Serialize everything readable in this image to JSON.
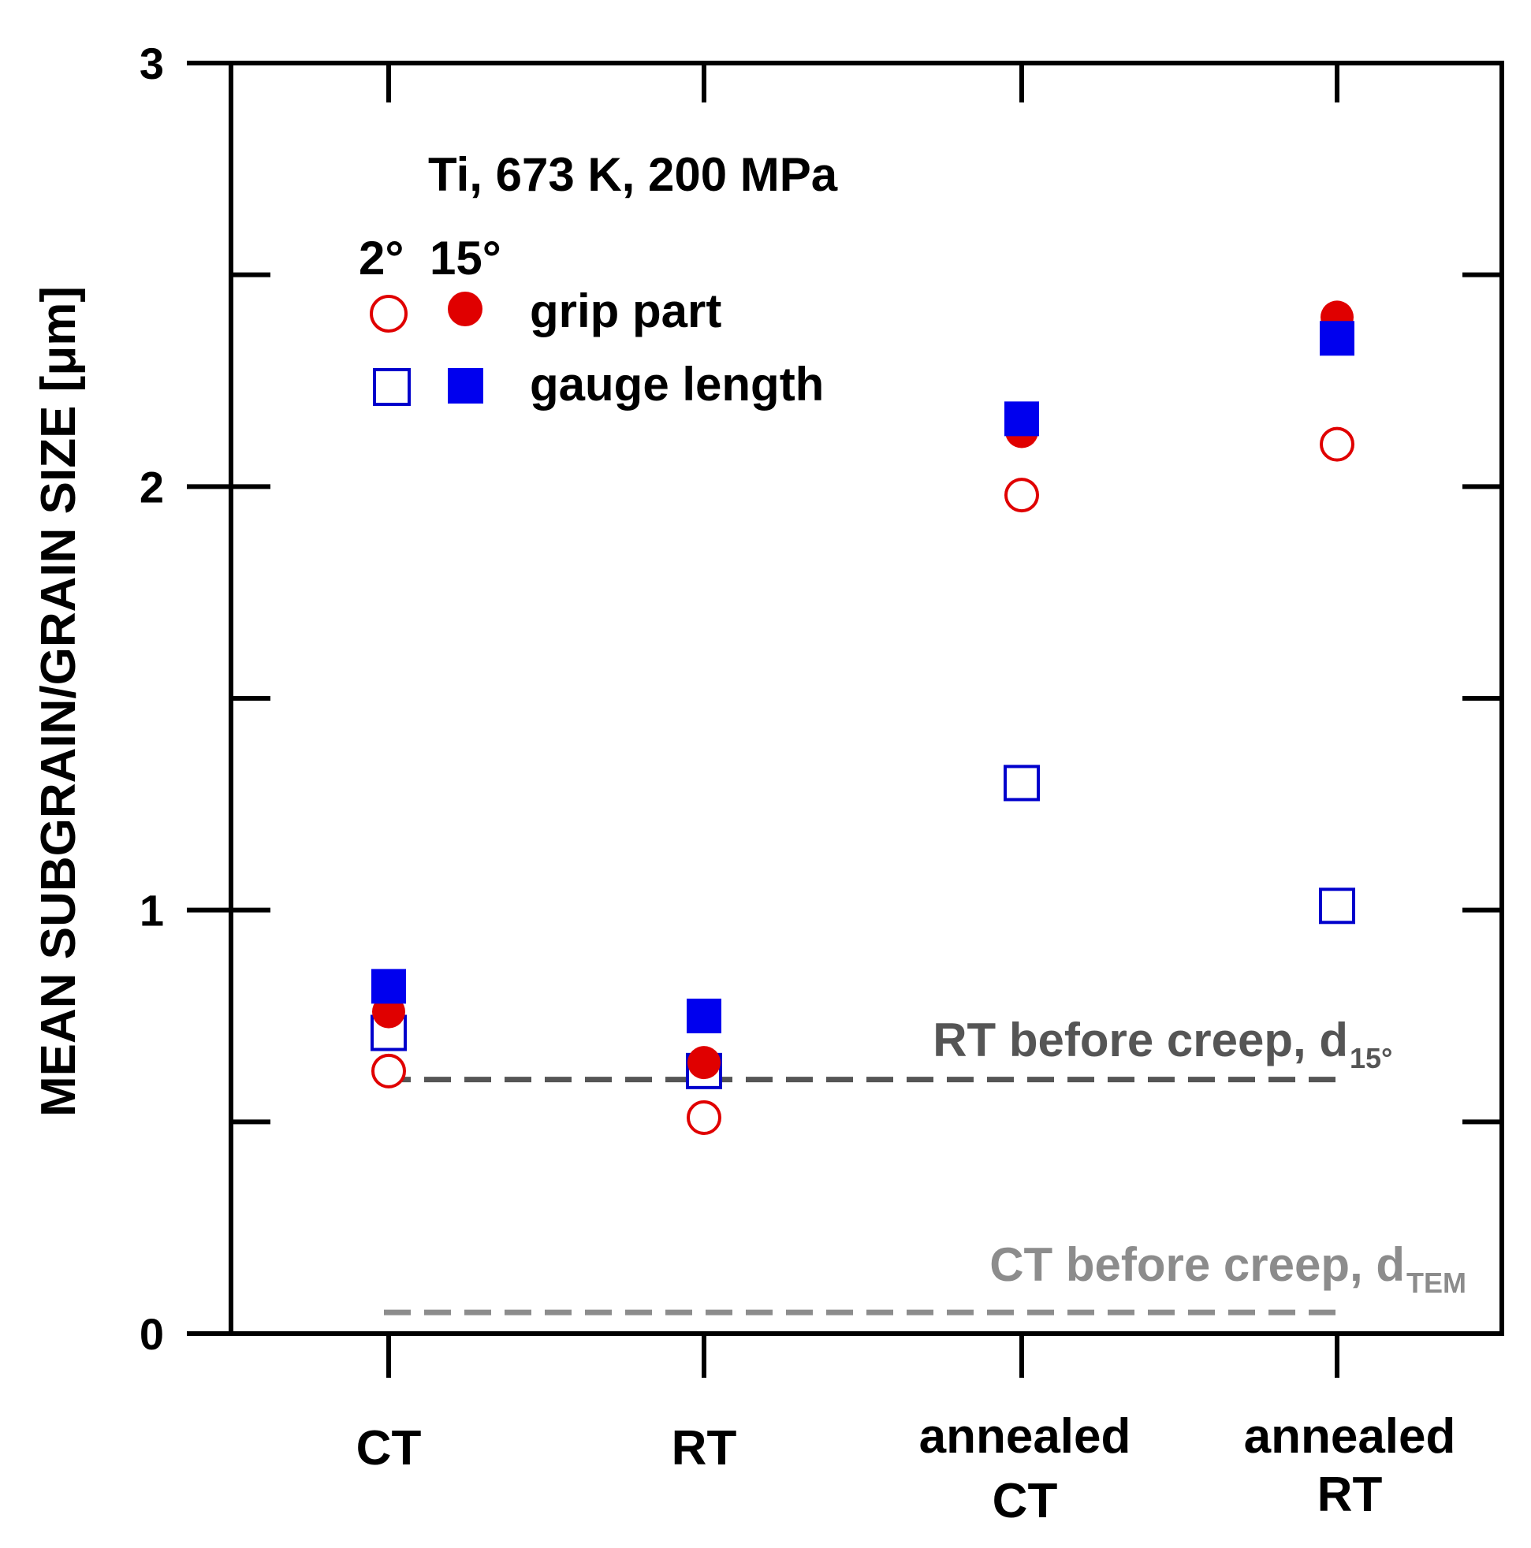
{
  "chart_data": {
    "type": "scatter",
    "title": "Ti, 673 K, 200 MPa",
    "ylabel": "MEAN SUBGRAIN/GRAIN SIZE [μm]",
    "xlabel": "",
    "ylim": [
      0,
      3
    ],
    "yticks": [
      "0",
      "1",
      "2",
      "3"
    ],
    "categories": [
      {
        "line1": "CT",
        "line2": ""
      },
      {
        "line1": "RT",
        "line2": ""
      },
      {
        "line1": "annealed",
        "line2": "CT"
      },
      {
        "line1": "annealed",
        "line2": "RT"
      }
    ],
    "legend": {
      "header_2deg": "2°",
      "header_15deg": "15°",
      "row1": "grip part",
      "row2": "gauge length",
      "placement": "top-left"
    },
    "series": [
      {
        "name": "grip part 2°",
        "marker": "circle-open",
        "color": "#e00000",
        "values": [
          0.62,
          0.51,
          1.98,
          2.1
        ]
      },
      {
        "name": "grip part 15°",
        "marker": "circle-filled",
        "color": "#e00000",
        "values": [
          0.76,
          0.64,
          2.13,
          2.4
        ]
      },
      {
        "name": "gauge length 2°",
        "marker": "square-open",
        "color": "#0000cc",
        "values": [
          0.71,
          0.62,
          1.3,
          1.01
        ]
      },
      {
        "name": "gauge length 15°",
        "marker": "square-filled",
        "color": "#0000ee",
        "values": [
          0.82,
          0.75,
          2.16,
          2.35
        ]
      }
    ],
    "reference_lines": [
      {
        "label": "RT before creep, d",
        "subscript": "15°",
        "value": 0.6,
        "color": "#555555"
      },
      {
        "label": "CT before creep, d",
        "subscript": "TEM",
        "value": 0.05,
        "color": "#8c8c8c"
      }
    ]
  }
}
